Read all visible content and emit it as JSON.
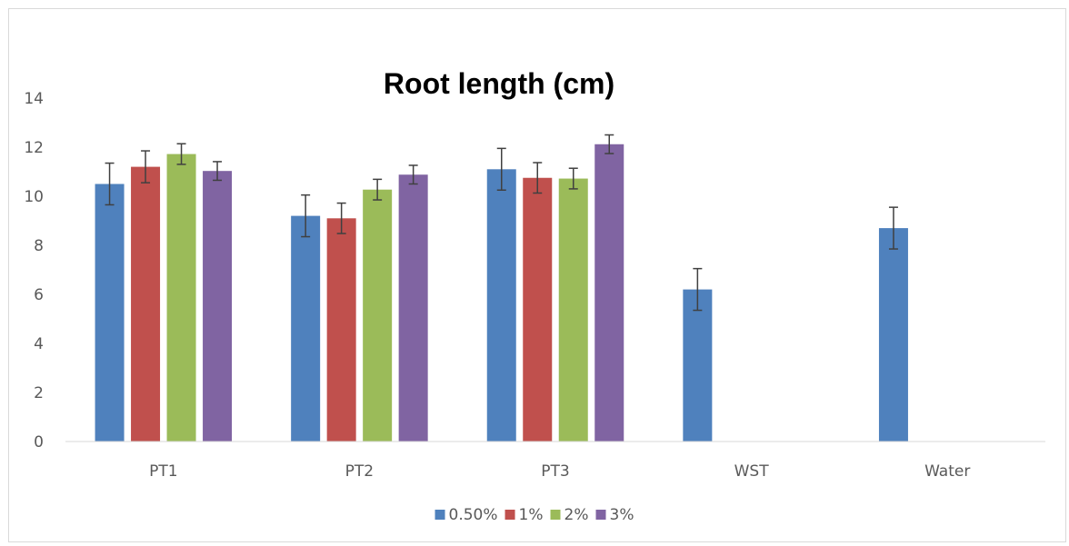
{
  "chart_data": {
    "type": "bar",
    "title": "Root length (cm)",
    "xlabel": "",
    "ylabel": "",
    "ylim": [
      0,
      14
    ],
    "yticks": [
      0,
      2,
      4,
      6,
      8,
      10,
      12,
      14
    ],
    "grid": false,
    "legend_position": "bottom",
    "categories": [
      "PT1",
      "PT2",
      "PT3",
      "WST",
      "Water"
    ],
    "series": [
      {
        "name": "0.50%",
        "color": "#4f81bd",
        "values": [
          10.5,
          9.2,
          11.1,
          6.2,
          8.7
        ],
        "errors": [
          0.85,
          0.85,
          0.85,
          0.85,
          0.85
        ]
      },
      {
        "name": "1%",
        "color": "#c0504d",
        "values": [
          11.2,
          9.1,
          10.75,
          null,
          null
        ],
        "errors": [
          0.65,
          0.62,
          0.62,
          null,
          null
        ]
      },
      {
        "name": "2%",
        "color": "#9bbb59",
        "values": [
          11.72,
          10.27,
          10.72,
          null,
          null
        ],
        "errors": [
          0.42,
          0.42,
          0.42,
          null,
          null
        ]
      },
      {
        "name": "3%",
        "color": "#8064a2",
        "values": [
          11.03,
          10.88,
          12.12,
          null,
          null
        ],
        "errors": [
          0.38,
          0.38,
          0.38,
          null,
          null
        ]
      }
    ]
  }
}
